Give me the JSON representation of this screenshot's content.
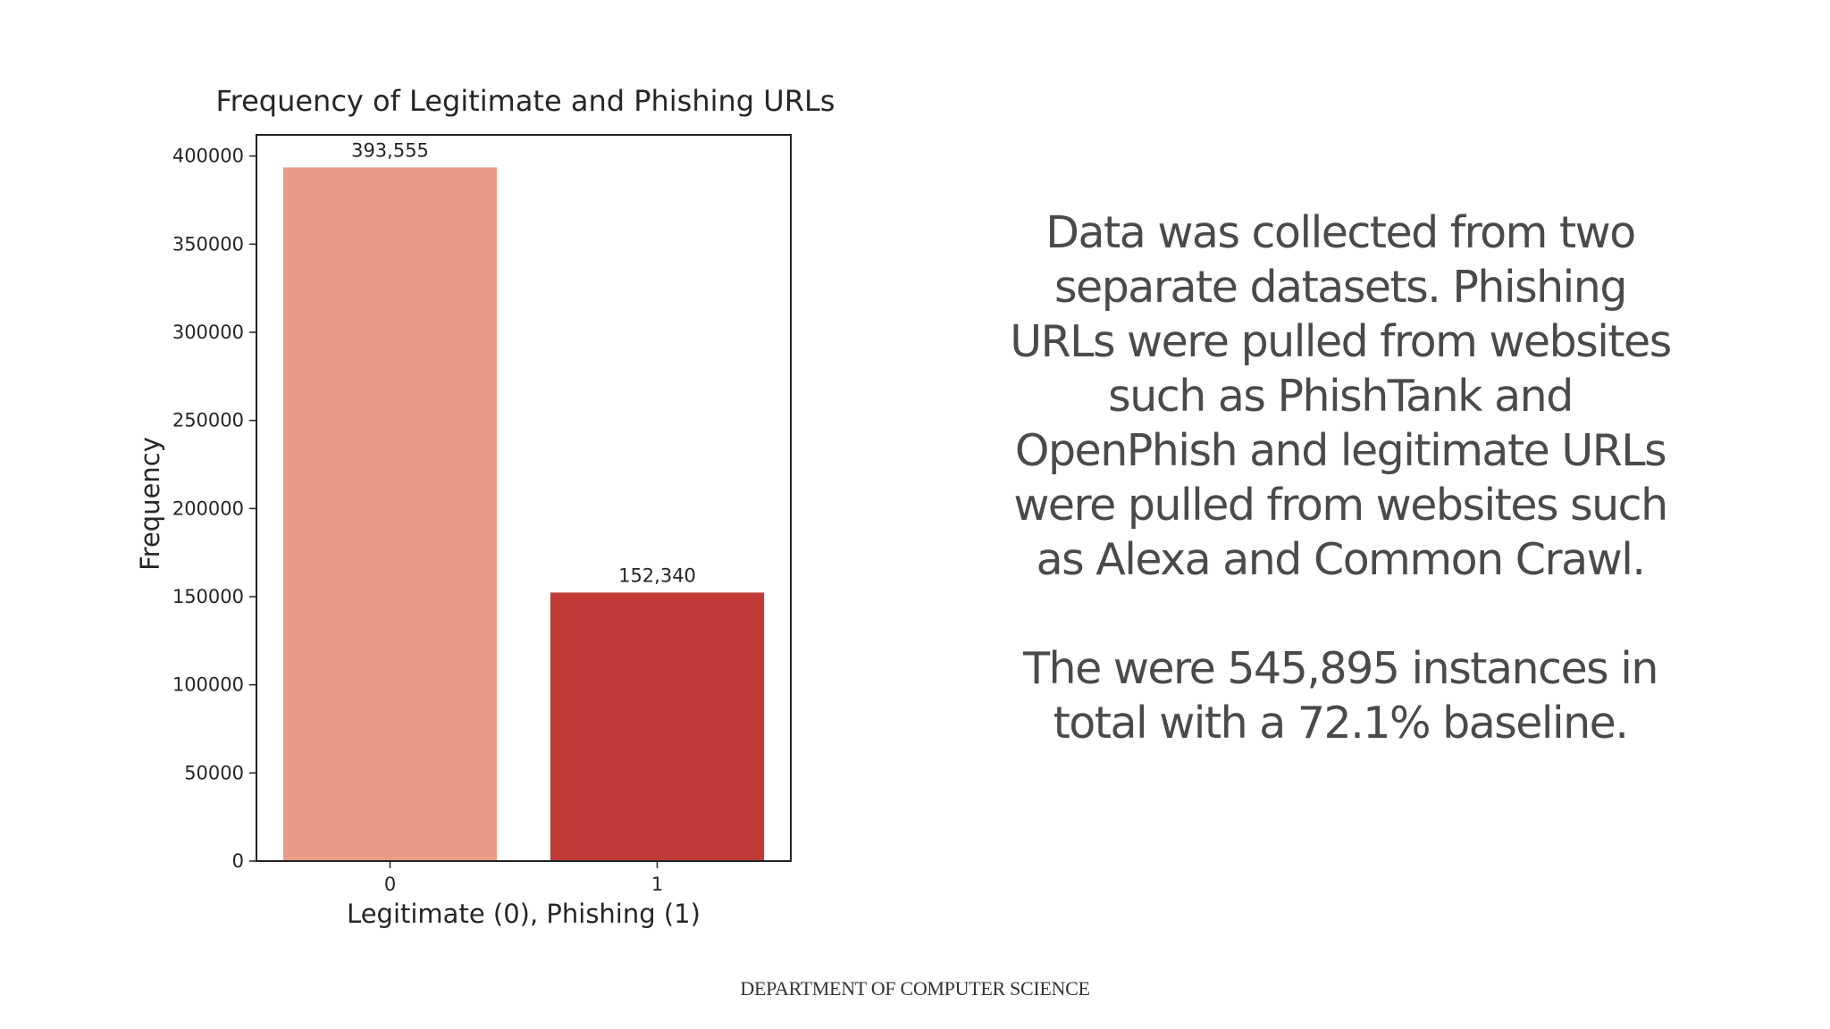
{
  "chart_data": {
    "type": "bar",
    "title": "Frequency of Legitimate and Phishing URLs",
    "xlabel": "Legitimate (0), Phishing (1)",
    "ylabel": "Frequency",
    "categories": [
      "0",
      "1"
    ],
    "values": [
      393555,
      152340
    ],
    "data_labels": [
      "393,555",
      "152,340"
    ],
    "colors": [
      "#e99b86",
      "#c03b37"
    ],
    "ylim": [
      0,
      412000
    ],
    "yticks": [
      0,
      50000,
      100000,
      150000,
      200000,
      250000,
      300000,
      350000,
      400000
    ],
    "ytick_labels": [
      "0",
      "50000",
      "100000",
      "150000",
      "200000",
      "250000",
      "300000",
      "350000",
      "400000"
    ],
    "grid": false,
    "legend": "none"
  },
  "description": {
    "paragraph_1": "Data was collected from two separate datasets. Phishing URLs were pulled from websites such as PhishTank and OpenPhish and legitimate URLs were pulled from websites such as Alexa and Common Crawl.",
    "paragraph_2": "The were 545,895 instances in total with a 72.1% baseline."
  },
  "footer": {
    "text": "DEPARTMENT OF COMPUTER SCIENCE"
  }
}
